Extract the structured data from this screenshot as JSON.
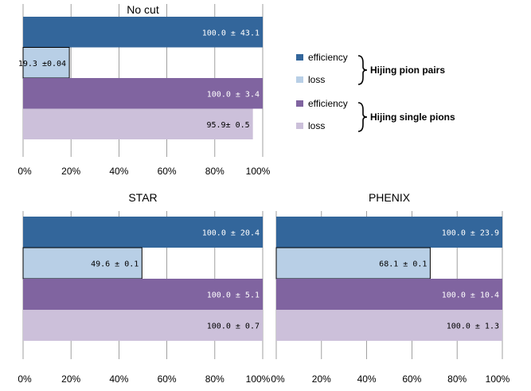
{
  "colors": {
    "pairs_efficiency": "#33669b",
    "pairs_loss": "#b8cfe6",
    "single_efficiency": "#8064a0",
    "single_loss": "#ccc0da"
  },
  "legend": {
    "items": [
      "efficiency",
      "loss",
      "efficiency",
      "loss"
    ],
    "groups": [
      "Hijing  pion pairs",
      "Hijing  single pions"
    ]
  },
  "chart_data": [
    {
      "type": "bar",
      "orientation": "horizontal",
      "title": "No cut",
      "xlim": [
        0,
        100
      ],
      "xticks": [
        "0%",
        "20%",
        "40%",
        "60%",
        "80%",
        "100%"
      ],
      "values": [
        100.0,
        19.3,
        100.0,
        95.9
      ],
      "labels": [
        "100.0 ± 43.1",
        "19.3 ±0.04",
        "100.0 ± 3.4",
        "95.9± 0.5"
      ]
    },
    {
      "type": "bar",
      "orientation": "horizontal",
      "title": "STAR",
      "xlim": [
        0,
        100
      ],
      "xticks": [
        "0%",
        "20%",
        "40%",
        "60%",
        "80%",
        "100%"
      ],
      "values": [
        100.0,
        49.6,
        100.0,
        100.0
      ],
      "labels": [
        "100.0 ± 20.4",
        "49.6 ± 0.1",
        "100.0 ± 5.1",
        "100.0 ± 0.7"
      ]
    },
    {
      "type": "bar",
      "orientation": "horizontal",
      "title": "PHENIX",
      "xlim": [
        0,
        100
      ],
      "xticks": [
        "0%",
        "20%",
        "40%",
        "60%",
        "80%",
        "100%"
      ],
      "values": [
        100.0,
        68.1,
        100.0,
        100.0
      ],
      "labels": [
        "100.0 ± 23.9",
        "68.1 ± 0.1",
        "100.0 ± 10.4",
        "100.0 ± 1.3"
      ]
    }
  ]
}
